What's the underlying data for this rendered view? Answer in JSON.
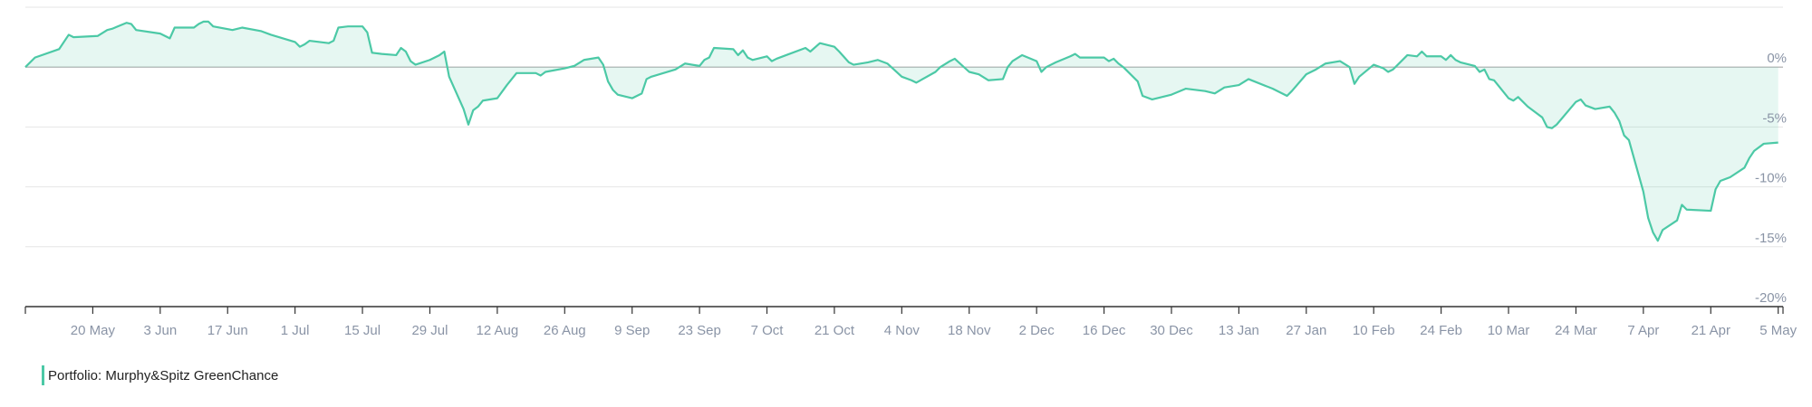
{
  "chart_data": {
    "type": "area",
    "y_unit": "%",
    "ylim": [
      -20,
      5
    ],
    "y_ticks": [
      {
        "value": 0,
        "label": "0%"
      },
      {
        "value": -5,
        "label": "-5%"
      },
      {
        "value": -10,
        "label": "-10%"
      },
      {
        "value": -15,
        "label": "-15%"
      },
      {
        "value": -20,
        "label": "-20%"
      }
    ],
    "xlim": [
      "2024-05-06",
      "2025-05-06"
    ],
    "x_ticks": [
      {
        "date": "2024-05-20",
        "label": "20 May"
      },
      {
        "date": "2024-06-03",
        "label": "3 Jun"
      },
      {
        "date": "2024-06-17",
        "label": "17 Jun"
      },
      {
        "date": "2024-07-01",
        "label": "1 Jul"
      },
      {
        "date": "2024-07-15",
        "label": "15 Jul"
      },
      {
        "date": "2024-07-29",
        "label": "29 Jul"
      },
      {
        "date": "2024-08-12",
        "label": "12 Aug"
      },
      {
        "date": "2024-08-26",
        "label": "26 Aug"
      },
      {
        "date": "2024-09-09",
        "label": "9 Sep"
      },
      {
        "date": "2024-09-23",
        "label": "23 Sep"
      },
      {
        "date": "2024-10-07",
        "label": "7 Oct"
      },
      {
        "date": "2024-10-21",
        "label": "21 Oct"
      },
      {
        "date": "2024-11-04",
        "label": "4 Nov"
      },
      {
        "date": "2024-11-18",
        "label": "18 Nov"
      },
      {
        "date": "2024-12-02",
        "label": "2 Dec"
      },
      {
        "date": "2024-12-16",
        "label": "16 Dec"
      },
      {
        "date": "2024-12-30",
        "label": "30 Dec"
      },
      {
        "date": "2025-01-13",
        "label": "13 Jan"
      },
      {
        "date": "2025-01-27",
        "label": "27 Jan"
      },
      {
        "date": "2025-02-10",
        "label": "10 Feb"
      },
      {
        "date": "2025-02-24",
        "label": "24 Feb"
      },
      {
        "date": "2025-03-10",
        "label": "10 Mar"
      },
      {
        "date": "2025-03-24",
        "label": "24 Mar"
      },
      {
        "date": "2025-04-07",
        "label": "7 Apr"
      },
      {
        "date": "2025-04-21",
        "label": "21 Apr"
      },
      {
        "date": "2025-05-05",
        "label": "5 May"
      }
    ],
    "grid": true,
    "legend_position": "bottom-left",
    "series": [
      {
        "name": "Portfolio: Murphy&Spitz GreenChance",
        "color": "#4cc9a6",
        "points": [
          [
            "2024-05-06",
            0.0
          ],
          [
            "2024-05-08",
            0.8
          ],
          [
            "2024-05-13",
            1.5
          ],
          [
            "2024-05-15",
            2.7
          ],
          [
            "2024-05-16",
            2.5
          ],
          [
            "2024-05-21",
            2.6
          ],
          [
            "2024-05-23",
            3.1
          ],
          [
            "2024-05-24",
            3.2
          ],
          [
            "2024-05-27",
            3.7
          ],
          [
            "2024-05-28",
            3.6
          ],
          [
            "2024-05-29",
            3.1
          ],
          [
            "2024-06-03",
            2.8
          ],
          [
            "2024-06-05",
            2.4
          ],
          [
            "2024-06-06",
            3.3
          ],
          [
            "2024-06-10",
            3.3
          ],
          [
            "2024-06-11",
            3.6
          ],
          [
            "2024-06-12",
            3.8
          ],
          [
            "2024-06-13",
            3.8
          ],
          [
            "2024-06-14",
            3.4
          ],
          [
            "2024-06-18",
            3.1
          ],
          [
            "2024-06-20",
            3.3
          ],
          [
            "2024-06-24",
            3.0
          ],
          [
            "2024-06-26",
            2.7
          ],
          [
            "2024-07-01",
            2.1
          ],
          [
            "2024-07-02",
            1.7
          ],
          [
            "2024-07-03",
            1.9
          ],
          [
            "2024-07-04",
            2.2
          ],
          [
            "2024-07-08",
            2.0
          ],
          [
            "2024-07-09",
            2.2
          ],
          [
            "2024-07-10",
            3.3
          ],
          [
            "2024-07-12",
            3.4
          ],
          [
            "2024-07-15",
            3.4
          ],
          [
            "2024-07-16",
            2.9
          ],
          [
            "2024-07-17",
            1.2
          ],
          [
            "2024-07-19",
            1.1
          ],
          [
            "2024-07-22",
            1.0
          ],
          [
            "2024-07-23",
            1.6
          ],
          [
            "2024-07-24",
            1.3
          ],
          [
            "2024-07-25",
            0.5
          ],
          [
            "2024-07-26",
            0.2
          ],
          [
            "2024-07-29",
            0.6
          ],
          [
            "2024-07-30",
            0.8
          ],
          [
            "2024-07-31",
            1.0
          ],
          [
            "2024-08-01",
            1.3
          ],
          [
            "2024-08-02",
            -0.8
          ],
          [
            "2024-08-05",
            -3.5
          ],
          [
            "2024-08-06",
            -4.8
          ],
          [
            "2024-08-07",
            -3.6
          ],
          [
            "2024-08-08",
            -3.3
          ],
          [
            "2024-08-09",
            -2.8
          ],
          [
            "2024-08-12",
            -2.6
          ],
          [
            "2024-08-14",
            -1.5
          ],
          [
            "2024-08-16",
            -0.5
          ],
          [
            "2024-08-20",
            -0.5
          ],
          [
            "2024-08-21",
            -0.7
          ],
          [
            "2024-08-22",
            -0.4
          ],
          [
            "2024-08-26",
            -0.1
          ],
          [
            "2024-08-28",
            0.1
          ],
          [
            "2024-08-30",
            0.6
          ],
          [
            "2024-09-02",
            0.8
          ],
          [
            "2024-09-03",
            0.2
          ],
          [
            "2024-09-04",
            -1.2
          ],
          [
            "2024-09-05",
            -1.9
          ],
          [
            "2024-09-06",
            -2.3
          ],
          [
            "2024-09-09",
            -2.6
          ],
          [
            "2024-09-10",
            -2.4
          ],
          [
            "2024-09-11",
            -2.2
          ],
          [
            "2024-09-12",
            -1.0
          ],
          [
            "2024-09-13",
            -0.8
          ],
          [
            "2024-09-18",
            -0.2
          ],
          [
            "2024-09-20",
            0.3
          ],
          [
            "2024-09-23",
            0.1
          ],
          [
            "2024-09-24",
            0.6
          ],
          [
            "2024-09-25",
            0.8
          ],
          [
            "2024-09-26",
            1.6
          ],
          [
            "2024-09-30",
            1.5
          ],
          [
            "2024-10-01",
            1.0
          ],
          [
            "2024-10-02",
            1.4
          ],
          [
            "2024-10-03",
            0.8
          ],
          [
            "2024-10-04",
            0.6
          ],
          [
            "2024-10-07",
            0.9
          ],
          [
            "2024-10-08",
            0.5
          ],
          [
            "2024-10-09",
            0.7
          ],
          [
            "2024-10-11",
            1.0
          ],
          [
            "2024-10-15",
            1.6
          ],
          [
            "2024-10-16",
            1.3
          ],
          [
            "2024-10-18",
            2.0
          ],
          [
            "2024-10-21",
            1.7
          ],
          [
            "2024-10-22",
            1.3
          ],
          [
            "2024-10-24",
            0.4
          ],
          [
            "2024-10-25",
            0.2
          ],
          [
            "2024-10-28",
            0.4
          ],
          [
            "2024-10-30",
            0.6
          ],
          [
            "2024-11-01",
            0.3
          ],
          [
            "2024-11-04",
            -0.8
          ],
          [
            "2024-11-06",
            -1.1
          ],
          [
            "2024-11-07",
            -1.3
          ],
          [
            "2024-11-11",
            -0.4
          ],
          [
            "2024-11-12",
            0.0
          ],
          [
            "2024-11-14",
            0.5
          ],
          [
            "2024-11-15",
            0.7
          ],
          [
            "2024-11-18",
            -0.4
          ],
          [
            "2024-11-20",
            -0.6
          ],
          [
            "2024-11-22",
            -1.1
          ],
          [
            "2024-11-25",
            -1.0
          ],
          [
            "2024-11-26",
            0.0
          ],
          [
            "2024-11-27",
            0.5
          ],
          [
            "2024-11-29",
            1.0
          ],
          [
            "2024-12-02",
            0.5
          ],
          [
            "2024-12-03",
            -0.4
          ],
          [
            "2024-12-04",
            0.0
          ],
          [
            "2024-12-06",
            0.4
          ],
          [
            "2024-12-09",
            0.9
          ],
          [
            "2024-12-10",
            1.1
          ],
          [
            "2024-12-11",
            0.8
          ],
          [
            "2024-12-16",
            0.8
          ],
          [
            "2024-12-17",
            0.5
          ],
          [
            "2024-12-18",
            0.7
          ],
          [
            "2024-12-19",
            0.3
          ],
          [
            "2024-12-20",
            0.0
          ],
          [
            "2024-12-23",
            -1.2
          ],
          [
            "2024-12-24",
            -2.4
          ],
          [
            "2024-12-26",
            -2.7
          ],
          [
            "2024-12-30",
            -2.3
          ],
          [
            "2025-01-02",
            -1.8
          ],
          [
            "2025-01-06",
            -2.0
          ],
          [
            "2025-01-08",
            -2.2
          ],
          [
            "2025-01-10",
            -1.7
          ],
          [
            "2025-01-13",
            -1.5
          ],
          [
            "2025-01-15",
            -1.0
          ],
          [
            "2025-01-20",
            -1.8
          ],
          [
            "2025-01-23",
            -2.4
          ],
          [
            "2025-01-24",
            -2.0
          ],
          [
            "2025-01-27",
            -0.6
          ],
          [
            "2025-01-29",
            -0.2
          ],
          [
            "2025-01-31",
            0.3
          ],
          [
            "2025-02-03",
            0.5
          ],
          [
            "2025-02-05",
            0.0
          ],
          [
            "2025-02-06",
            -1.4
          ],
          [
            "2025-02-07",
            -0.8
          ],
          [
            "2025-02-10",
            0.2
          ],
          [
            "2025-02-12",
            -0.1
          ],
          [
            "2025-02-13",
            -0.4
          ],
          [
            "2025-02-14",
            -0.2
          ],
          [
            "2025-02-17",
            1.0
          ],
          [
            "2025-02-19",
            0.9
          ],
          [
            "2025-02-20",
            1.3
          ],
          [
            "2025-02-21",
            0.9
          ],
          [
            "2025-02-24",
            0.9
          ],
          [
            "2025-02-25",
            0.6
          ],
          [
            "2025-02-26",
            1.0
          ],
          [
            "2025-02-27",
            0.6
          ],
          [
            "2025-02-28",
            0.4
          ],
          [
            "2025-03-03",
            0.1
          ],
          [
            "2025-03-04",
            -0.4
          ],
          [
            "2025-03-05",
            -0.2
          ],
          [
            "2025-03-06",
            -1.0
          ],
          [
            "2025-03-07",
            -1.1
          ],
          [
            "2025-03-10",
            -2.6
          ],
          [
            "2025-03-11",
            -2.8
          ],
          [
            "2025-03-12",
            -2.5
          ],
          [
            "2025-03-14",
            -3.3
          ],
          [
            "2025-03-17",
            -4.2
          ],
          [
            "2025-03-18",
            -5.0
          ],
          [
            "2025-03-19",
            -5.1
          ],
          [
            "2025-03-20",
            -4.8
          ],
          [
            "2025-03-24",
            -2.9
          ],
          [
            "2025-03-25",
            -2.7
          ],
          [
            "2025-03-26",
            -3.2
          ],
          [
            "2025-03-28",
            -3.5
          ],
          [
            "2025-03-31",
            -3.3
          ],
          [
            "2025-04-01",
            -3.8
          ],
          [
            "2025-04-02",
            -4.5
          ],
          [
            "2025-04-03",
            -5.7
          ],
          [
            "2025-04-04",
            -6.1
          ],
          [
            "2025-04-07",
            -10.4
          ],
          [
            "2025-04-08",
            -12.6
          ],
          [
            "2025-04-09",
            -13.8
          ],
          [
            "2025-04-10",
            -14.5
          ],
          [
            "2025-04-11",
            -13.6
          ],
          [
            "2025-04-14",
            -12.8
          ],
          [
            "2025-04-15",
            -11.5
          ],
          [
            "2025-04-16",
            -11.9
          ],
          [
            "2025-04-21",
            -12.0
          ],
          [
            "2025-04-22",
            -10.2
          ],
          [
            "2025-04-23",
            -9.5
          ],
          [
            "2025-04-25",
            -9.2
          ],
          [
            "2025-04-28",
            -8.4
          ],
          [
            "2025-04-29",
            -7.6
          ],
          [
            "2025-04-30",
            -7.0
          ],
          [
            "2025-05-02",
            -6.4
          ],
          [
            "2025-05-05",
            -6.3
          ]
        ]
      }
    ]
  },
  "legend": {
    "label": "Portfolio: Murphy&Spitz GreenChance",
    "color": "#4cc9a6"
  }
}
